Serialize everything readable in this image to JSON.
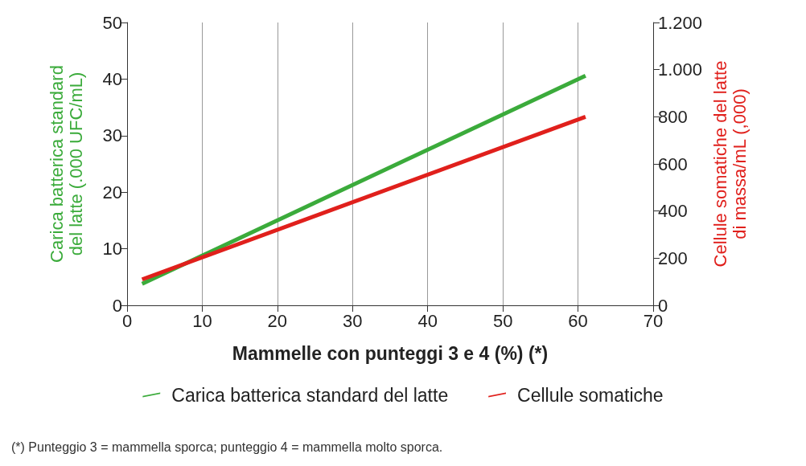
{
  "chart_data": {
    "type": "line",
    "xlabel": "Mammelle con punteggi 3 e 4 (%) (*)",
    "ylabel": "Carica batterica standard\ndel latte (.000 UFC/mL)",
    "y2label": "Cellule somatiche del latte\ndi massa/mL (,000)",
    "x": [
      2,
      61
    ],
    "series": [
      {
        "name": "Carica batterica standard del latte",
        "color": "#3bab3b",
        "values": [
          3.8,
          40.6
        ]
      },
      {
        "name": "Cellule somatiche",
        "color": "#e0201c",
        "axis": "y2",
        "values": [
          110,
          800
        ]
      }
    ],
    "xlim": [
      0,
      70
    ],
    "xticks": [
      0,
      10,
      20,
      30,
      40,
      50,
      60,
      70
    ],
    "ylim": [
      0,
      50
    ],
    "yticks": [
      0,
      10,
      20,
      30,
      40,
      50
    ],
    "y2lim": [
      0,
      1200
    ],
    "y2ticks": [
      0,
      200,
      400,
      600,
      800,
      {
        "value": 1000,
        "label": "1.000"
      },
      {
        "value": 1200,
        "label": "1.200"
      }
    ],
    "grid": "x",
    "legend": "bottom",
    "marker": "none",
    "line_style": "solid",
    "annotations": [
      "(*) Punteggio 3 = mammella sporca; punteggio 4 = mammella molto sporca."
    ]
  }
}
